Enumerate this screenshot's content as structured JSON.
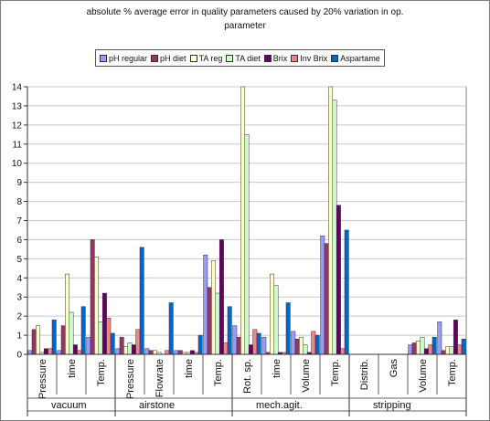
{
  "chart_data": {
    "type": "bar",
    "title": "absolute % average error in quality parameters caused by 20% variation in op.",
    "title_line2": "parameter",
    "xlabel": "",
    "ylabel": "",
    "ylim": [
      0,
      14
    ],
    "yticks": [
      0,
      1,
      2,
      3,
      4,
      5,
      6,
      7,
      8,
      9,
      10,
      11,
      12,
      13,
      14
    ],
    "grid": "horizontal",
    "legend_position": "top",
    "categories": [
      "Pressure",
      "time",
      "Temp.",
      "Pressure",
      "Flowrate",
      "time",
      "Temp.",
      "Rot. sp.",
      "time",
      "Volume",
      "Temp.",
      "Distrib.",
      "Gas",
      "Volume",
      "Temp."
    ],
    "groups": [
      {
        "label": "vacuum",
        "count": 3
      },
      {
        "label": "airstone",
        "count": 4
      },
      {
        "label": "mech.agit.",
        "count": 4
      },
      {
        "label": "stripping",
        "count": 4
      }
    ],
    "series": [
      {
        "name": "pH regular",
        "color": "#9999ff",
        "values": [
          0.2,
          0.2,
          0.9,
          0.3,
          0.3,
          0.2,
          5.2,
          1.5,
          0.9,
          1.2,
          6.2,
          0,
          0,
          0.5,
          1.7
        ]
      },
      {
        "name": "pH diet",
        "color": "#993366",
        "values": [
          1.3,
          1.5,
          6.0,
          0.9,
          0.2,
          0.2,
          3.5,
          0.9,
          0.1,
          0.8,
          5.8,
          0,
          0,
          0.6,
          0.2
        ]
      },
      {
        "name": "TA reg",
        "color": "#ffffcc",
        "values": [
          1.5,
          4.2,
          5.1,
          0.4,
          0.2,
          0.1,
          4.9,
          14.0,
          4.2,
          0.9,
          14.0,
          0,
          0,
          0.7,
          0.4
        ]
      },
      {
        "name": "TA diet",
        "color": "#ccffcc",
        "values": [
          0.1,
          2.2,
          1.7,
          0.6,
          0.1,
          0.1,
          3.2,
          11.5,
          3.6,
          0.5,
          13.3,
          0,
          0,
          0.9,
          0.4
        ]
      },
      {
        "name": "Brix",
        "color": "#660066",
        "values": [
          0.3,
          0.5,
          3.2,
          0.5,
          0,
          0.2,
          6.0,
          0.5,
          0.1,
          0.1,
          7.8,
          0,
          0,
          0.3,
          1.8
        ]
      },
      {
        "name": "Inv Brix",
        "color": "#ff8080",
        "values": [
          0.3,
          0.2,
          1.9,
          1.3,
          0.2,
          0.1,
          0.6,
          1.3,
          0.1,
          1.2,
          0.3,
          0,
          0,
          0.5,
          0.5
        ]
      },
      {
        "name": "Aspartame",
        "color": "#0066cc",
        "values": [
          1.8,
          2.5,
          1.1,
          5.6,
          2.7,
          1.0,
          2.5,
          1.1,
          2.7,
          1.0,
          6.5,
          0,
          0,
          0.9,
          0.8
        ]
      }
    ]
  }
}
